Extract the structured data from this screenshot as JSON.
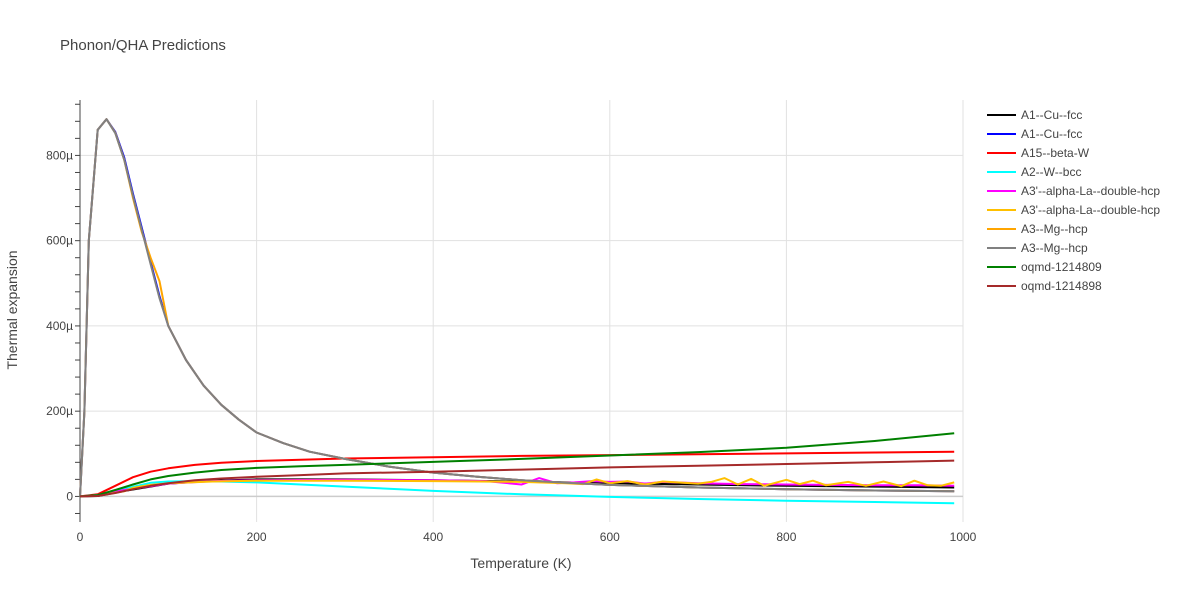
{
  "chart_data": {
    "type": "line",
    "title": "Phonon/QHA Predictions",
    "xlabel": "Temperature (K)",
    "ylabel": "Thermal expansion",
    "xlim": [
      0,
      1000
    ],
    "ylim": [
      -6e-05,
      0.00093
    ],
    "xticks": [
      0,
      200,
      400,
      600,
      800,
      1000
    ],
    "xtick_labels": [
      "0",
      "200",
      "400",
      "600",
      "800",
      "1000"
    ],
    "yticks": [
      0,
      0.0002,
      0.0004,
      0.0006,
      0.0008
    ],
    "ytick_labels": [
      "0",
      "200µ",
      "400µ",
      "600µ",
      "800µ"
    ],
    "grid": true,
    "legend_position": "right",
    "series": [
      {
        "name": "A1--Cu--fcc",
        "color": "#000000",
        "x": [
          0,
          20,
          50,
          100,
          150,
          200,
          300,
          400,
          500,
          600,
          700,
          800,
          900,
          990
        ],
        "y": [
          0,
          1e-06,
          1.3e-05,
          3e-05,
          3.7e-05,
          4e-05,
          4e-05,
          3.8e-05,
          3.5e-05,
          3.1e-05,
          2.8e-05,
          2.5e-05,
          2.3e-05,
          2.1e-05
        ]
      },
      {
        "name": "A1--Cu--fcc",
        "color": "#0000ff",
        "x": [
          0,
          5,
          10,
          20,
          30,
          40,
          50,
          60,
          70,
          80,
          90,
          100,
          120,
          140,
          160,
          180,
          200,
          230,
          260,
          300,
          350,
          400,
          450,
          500,
          550,
          600,
          700,
          800,
          900,
          990
        ],
        "y": [
          0,
          0.0002,
          0.0006,
          0.00086,
          0.000885,
          0.000855,
          0.000795,
          0.00071,
          0.00063,
          0.00055,
          0.00047,
          0.0004,
          0.00032,
          0.00026,
          0.000215,
          0.00018,
          0.00015,
          0.000125,
          0.000105,
          8.8e-05,
          7e-05,
          5.6e-05,
          4.6e-05,
          3.8e-05,
          3.2e-05,
          2.7e-05,
          2.1e-05,
          1.7e-05,
          1.4e-05,
          1.2e-05
        ]
      },
      {
        "name": "A15--beta-W",
        "color": "#ff0000",
        "x": [
          0,
          20,
          40,
          60,
          80,
          100,
          130,
          160,
          200,
          250,
          300,
          400,
          500,
          600,
          700,
          800,
          900,
          990
        ],
        "y": [
          0,
          5e-06,
          2.5e-05,
          4.5e-05,
          5.8e-05,
          6.6e-05,
          7.4e-05,
          7.9e-05,
          8.3e-05,
          8.6e-05,
          8.9e-05,
          9.2e-05,
          9.5e-05,
          9.7e-05,
          9.9e-05,
          0.000101,
          0.000103,
          0.000105
        ]
      },
      {
        "name": "A2--W--bcc",
        "color": "#00ffff",
        "x": [
          0,
          20,
          50,
          80,
          100,
          130,
          160,
          200,
          250,
          300,
          400,
          500,
          600,
          700,
          800,
          900,
          990
        ],
        "y": [
          0,
          3e-06,
          1.8e-05,
          3.2e-05,
          3.5e-05,
          3.6e-05,
          3.5e-05,
          3.3e-05,
          2.8e-05,
          2.3e-05,
          1.3e-05,
          5e-06,
          -1e-06,
          -6e-06,
          -1e-05,
          -1.3e-05,
          -1.6e-05
        ]
      },
      {
        "name": "A3'--alpha-La--double-hcp",
        "color": "#ff00ff",
        "x": [
          0,
          20,
          50,
          100,
          150,
          200,
          300,
          400,
          460,
          480,
          500,
          520,
          540,
          560,
          580,
          600,
          620,
          640,
          660,
          700,
          750,
          800,
          850,
          900,
          950,
          990
        ],
        "y": [
          0,
          2e-06,
          1.5e-05,
          3e-05,
          3.6e-05,
          3.8e-05,
          3.9e-05,
          3.8e-05,
          3.6e-05,
          3.2e-05,
          2.8e-05,
          4.3e-05,
          3.1e-05,
          3.3e-05,
          3.6e-05,
          3.4e-05,
          3.5e-05,
          3e-05,
          3.4e-05,
          3.1e-05,
          2.9e-05,
          2.8e-05,
          2.7e-05,
          2.6e-05,
          2.6e-05,
          2.5e-05
        ]
      },
      {
        "name": "A3'--alpha-La--double-hcp",
        "color": "#ffc000",
        "x": [
          0,
          20,
          50,
          60,
          70,
          80,
          90,
          100,
          150,
          200,
          300,
          400,
          500,
          550,
          570,
          585,
          600,
          620,
          640,
          660,
          700,
          715,
          730,
          745,
          760,
          775,
          800,
          815,
          830,
          845,
          870,
          890,
          910,
          930,
          945,
          960,
          975,
          990
        ],
        "y": [
          0,
          2e-06,
          1.2e-05,
          2e-05,
          2.4e-05,
          2.7e-05,
          2.9e-05,
          3.1e-05,
          3.5e-05,
          3.7e-05,
          3.7e-05,
          3.6e-05,
          3.4e-05,
          3.1e-05,
          2.9e-05,
          4e-05,
          3.1e-05,
          3.6e-05,
          2.8e-05,
          3.5e-05,
          3e-05,
          3.4e-05,
          4.3e-05,
          2.8e-05,
          4.1e-05,
          2.5e-05,
          3.9e-05,
          2.9e-05,
          3.7e-05,
          2.6e-05,
          3.4e-05,
          2.5e-05,
          3.5e-05,
          2.4e-05,
          3.7e-05,
          2.6e-05,
          2.5e-05,
          3.3e-05
        ]
      },
      {
        "name": "A3--Mg--hcp",
        "color": "#ffa500",
        "x": [
          0,
          5,
          10,
          20,
          30,
          40,
          50,
          60,
          70,
          80,
          90,
          100,
          120,
          140,
          160,
          180,
          200,
          230,
          260,
          300,
          350,
          400,
          450,
          500,
          550,
          600,
          700,
          800,
          900,
          990
        ],
        "y": [
          0,
          0.0002,
          0.0006,
          0.00086,
          0.000885,
          0.000853,
          0.00079,
          0.0007,
          0.00062,
          0.00056,
          0.000505,
          0.0004,
          0.00032,
          0.00026,
          0.000215,
          0.00018,
          0.00015,
          0.000125,
          0.000105,
          8.8e-05,
          7e-05,
          5.6e-05,
          4.6e-05,
          3.8e-05,
          3.2e-05,
          2.7e-05,
          2.1e-05,
          1.7e-05,
          1.4e-05,
          1.2e-05
        ]
      },
      {
        "name": "A3--Mg--hcp",
        "color": "#808080",
        "x": [
          0,
          5,
          10,
          20,
          30,
          40,
          50,
          60,
          70,
          80,
          90,
          100,
          120,
          140,
          160,
          180,
          200,
          230,
          260,
          300,
          350,
          400,
          450,
          500,
          550,
          600,
          700,
          800,
          900,
          990
        ],
        "y": [
          0,
          0.0002,
          0.0006,
          0.00086,
          0.000885,
          0.000852,
          0.00079,
          0.000705,
          0.000625,
          0.000545,
          0.000465,
          0.0004,
          0.00032,
          0.00026,
          0.000215,
          0.00018,
          0.00015,
          0.000125,
          0.000105,
          8.8e-05,
          7e-05,
          5.6e-05,
          4.6e-05,
          3.8e-05,
          3.2e-05,
          2.7e-05,
          2.1e-05,
          1.7e-05,
          1.4e-05,
          1.2e-05
        ]
      },
      {
        "name": "oqmd-1214809",
        "color": "#008000",
        "x": [
          0,
          20,
          40,
          60,
          80,
          100,
          130,
          160,
          200,
          250,
          300,
          400,
          500,
          600,
          700,
          800,
          900,
          990
        ],
        "y": [
          0,
          3e-06,
          1.5e-05,
          2.8e-05,
          4e-05,
          4.8e-05,
          5.6e-05,
          6.2e-05,
          6.7e-05,
          7.1e-05,
          7.4e-05,
          8.1e-05,
          8.8e-05,
          9.6e-05,
          0.000104,
          0.000114,
          0.00013,
          0.000148
        ]
      },
      {
        "name": "oqmd-1214898",
        "color": "#a52a2a",
        "x": [
          0,
          20,
          40,
          60,
          80,
          100,
          130,
          160,
          200,
          250,
          300,
          400,
          500,
          600,
          700,
          800,
          900,
          990
        ],
        "y": [
          0,
          1e-06,
          8e-06,
          1.7e-05,
          2.5e-05,
          3.1e-05,
          3.8e-05,
          4.2e-05,
          4.6e-05,
          5e-05,
          5.4e-05,
          5.8e-05,
          6.3e-05,
          6.8e-05,
          7.2e-05,
          7.6e-05,
          8e-05,
          8.4e-05
        ]
      }
    ]
  }
}
